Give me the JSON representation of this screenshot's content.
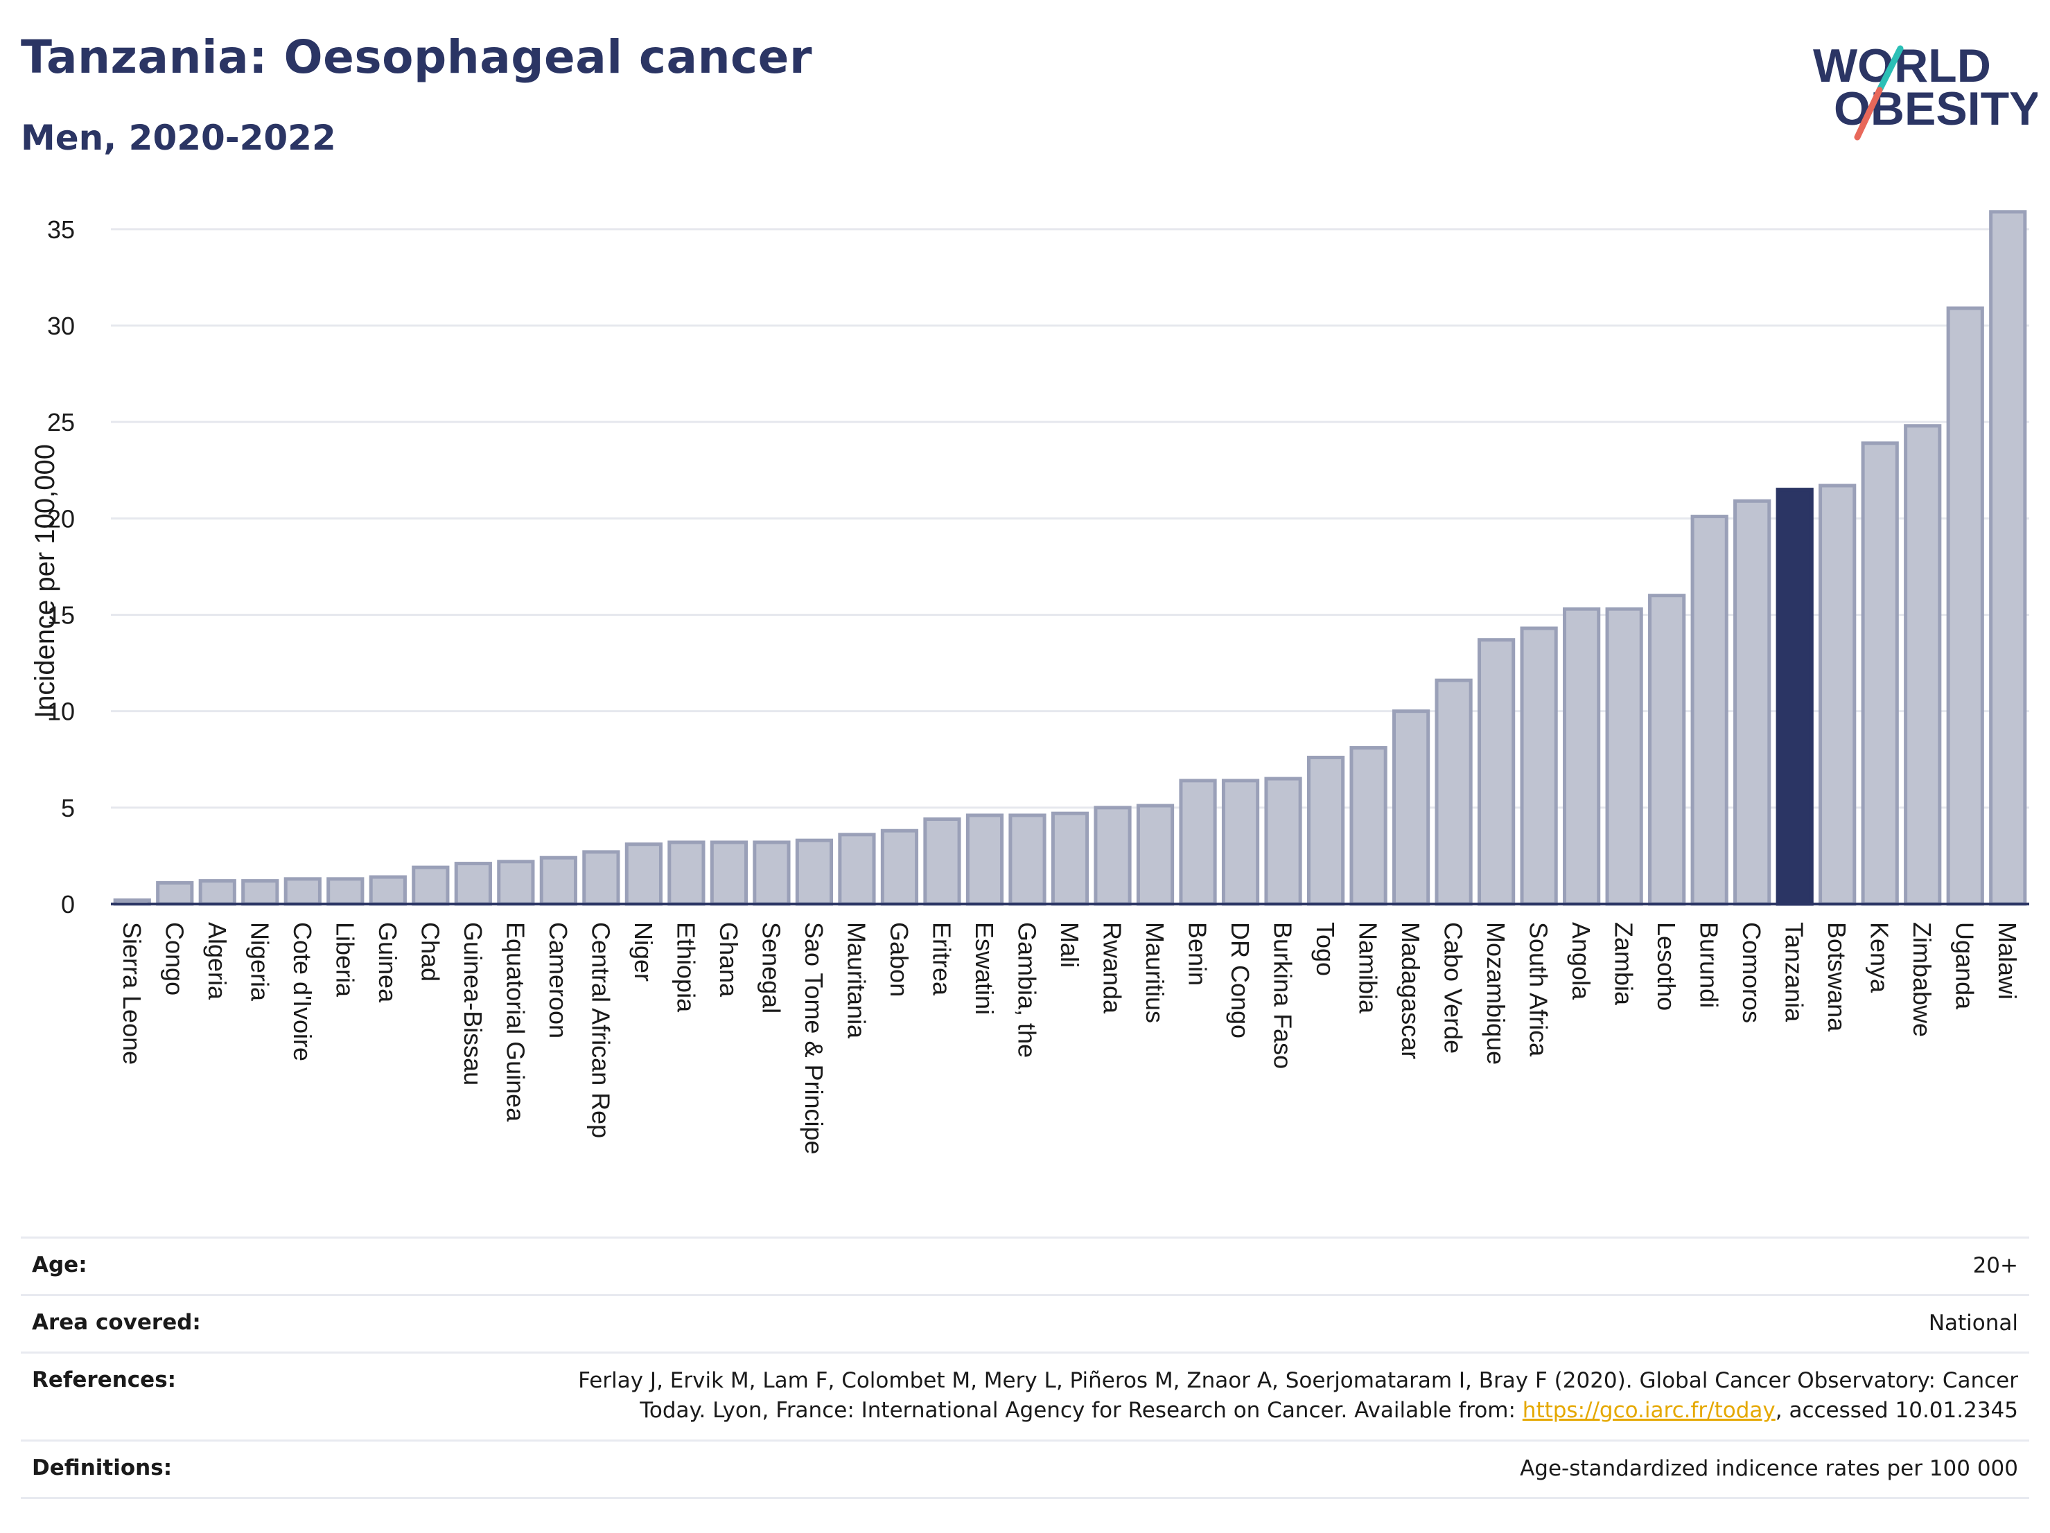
{
  "header": {
    "title": "Tanzania: Oesophageal cancer",
    "subtitle": "Men, 2020-2022"
  },
  "logo": {
    "line1": "WORLD",
    "line2": "OBESITY",
    "accent_colors": [
      "#2bbfb6",
      "#e8685a"
    ],
    "text_color": "#2b3564"
  },
  "chart_data": {
    "type": "bar",
    "ylabel": "Incidence per 100,000",
    "xlabel": "",
    "ylim": [
      0,
      36
    ],
    "yticks": [
      0,
      5,
      10,
      15,
      20,
      25,
      30,
      35
    ],
    "grid": true,
    "highlight": "Tanzania",
    "colors": {
      "bar": "#bfc3d1",
      "bar_edge": "#9aa0b8",
      "highlight": "#2b3564"
    },
    "categories": [
      "Sierra Leone",
      "Congo",
      "Algeria",
      "Nigeria",
      "Cote d'Ivoire",
      "Liberia",
      "Guinea",
      "Chad",
      "Guinea-Bissau",
      "Equatorial Guinea",
      "Cameroon",
      "Central African Rep",
      "Niger",
      "Ethiopia",
      "Ghana",
      "Senegal",
      "Sao Tome & Principe",
      "Mauritania",
      "Gabon",
      "Eritrea",
      "Eswatini",
      "Gambia, the",
      "Mali",
      "Rwanda",
      "Mauritius",
      "Benin",
      "DR Congo",
      "Burkina Faso",
      "Togo",
      "Namibia",
      "Madagascar",
      "Cabo Verde",
      "Mozambique",
      "South Africa",
      "Angola",
      "Zambia",
      "Lesotho",
      "Burundi",
      "Comoros",
      "Tanzania",
      "Botswana",
      "Kenya",
      "Zimbabwe",
      "Uganda",
      "Malawi"
    ],
    "values": [
      0.2,
      1.1,
      1.2,
      1.2,
      1.3,
      1.3,
      1.4,
      1.9,
      2.1,
      2.2,
      2.4,
      2.7,
      3.1,
      3.2,
      3.2,
      3.2,
      3.3,
      3.6,
      3.8,
      4.4,
      4.6,
      4.6,
      4.7,
      5.0,
      5.1,
      6.4,
      6.4,
      6.5,
      7.6,
      8.1,
      10.0,
      11.6,
      13.7,
      14.3,
      15.3,
      15.3,
      16.0,
      20.1,
      20.9,
      21.5,
      21.7,
      23.9,
      24.8,
      30.9,
      35.9
    ]
  },
  "meta": {
    "rows": [
      {
        "label": "Age:",
        "value": "20+"
      },
      {
        "label": "Area covered:",
        "value": "National"
      },
      {
        "label": "References:",
        "value_line1": "Ferlay J, Ervik M, Lam F, Colombet M, Mery L, Piñeros M, Znaor A, Soerjomataram I, Bray F (2020). Global Cancer Observatory: Cancer",
        "value_line2_pre": "Today. Lyon, France: International Agency for Research on Cancer. Available from: ",
        "value_link": "https://gco.iarc.fr/today",
        "value_line2_post": ", accessed 10.01.2345"
      },
      {
        "label": "Definitions:",
        "value": "Age-standardized indicence rates per 100 000"
      }
    ]
  }
}
